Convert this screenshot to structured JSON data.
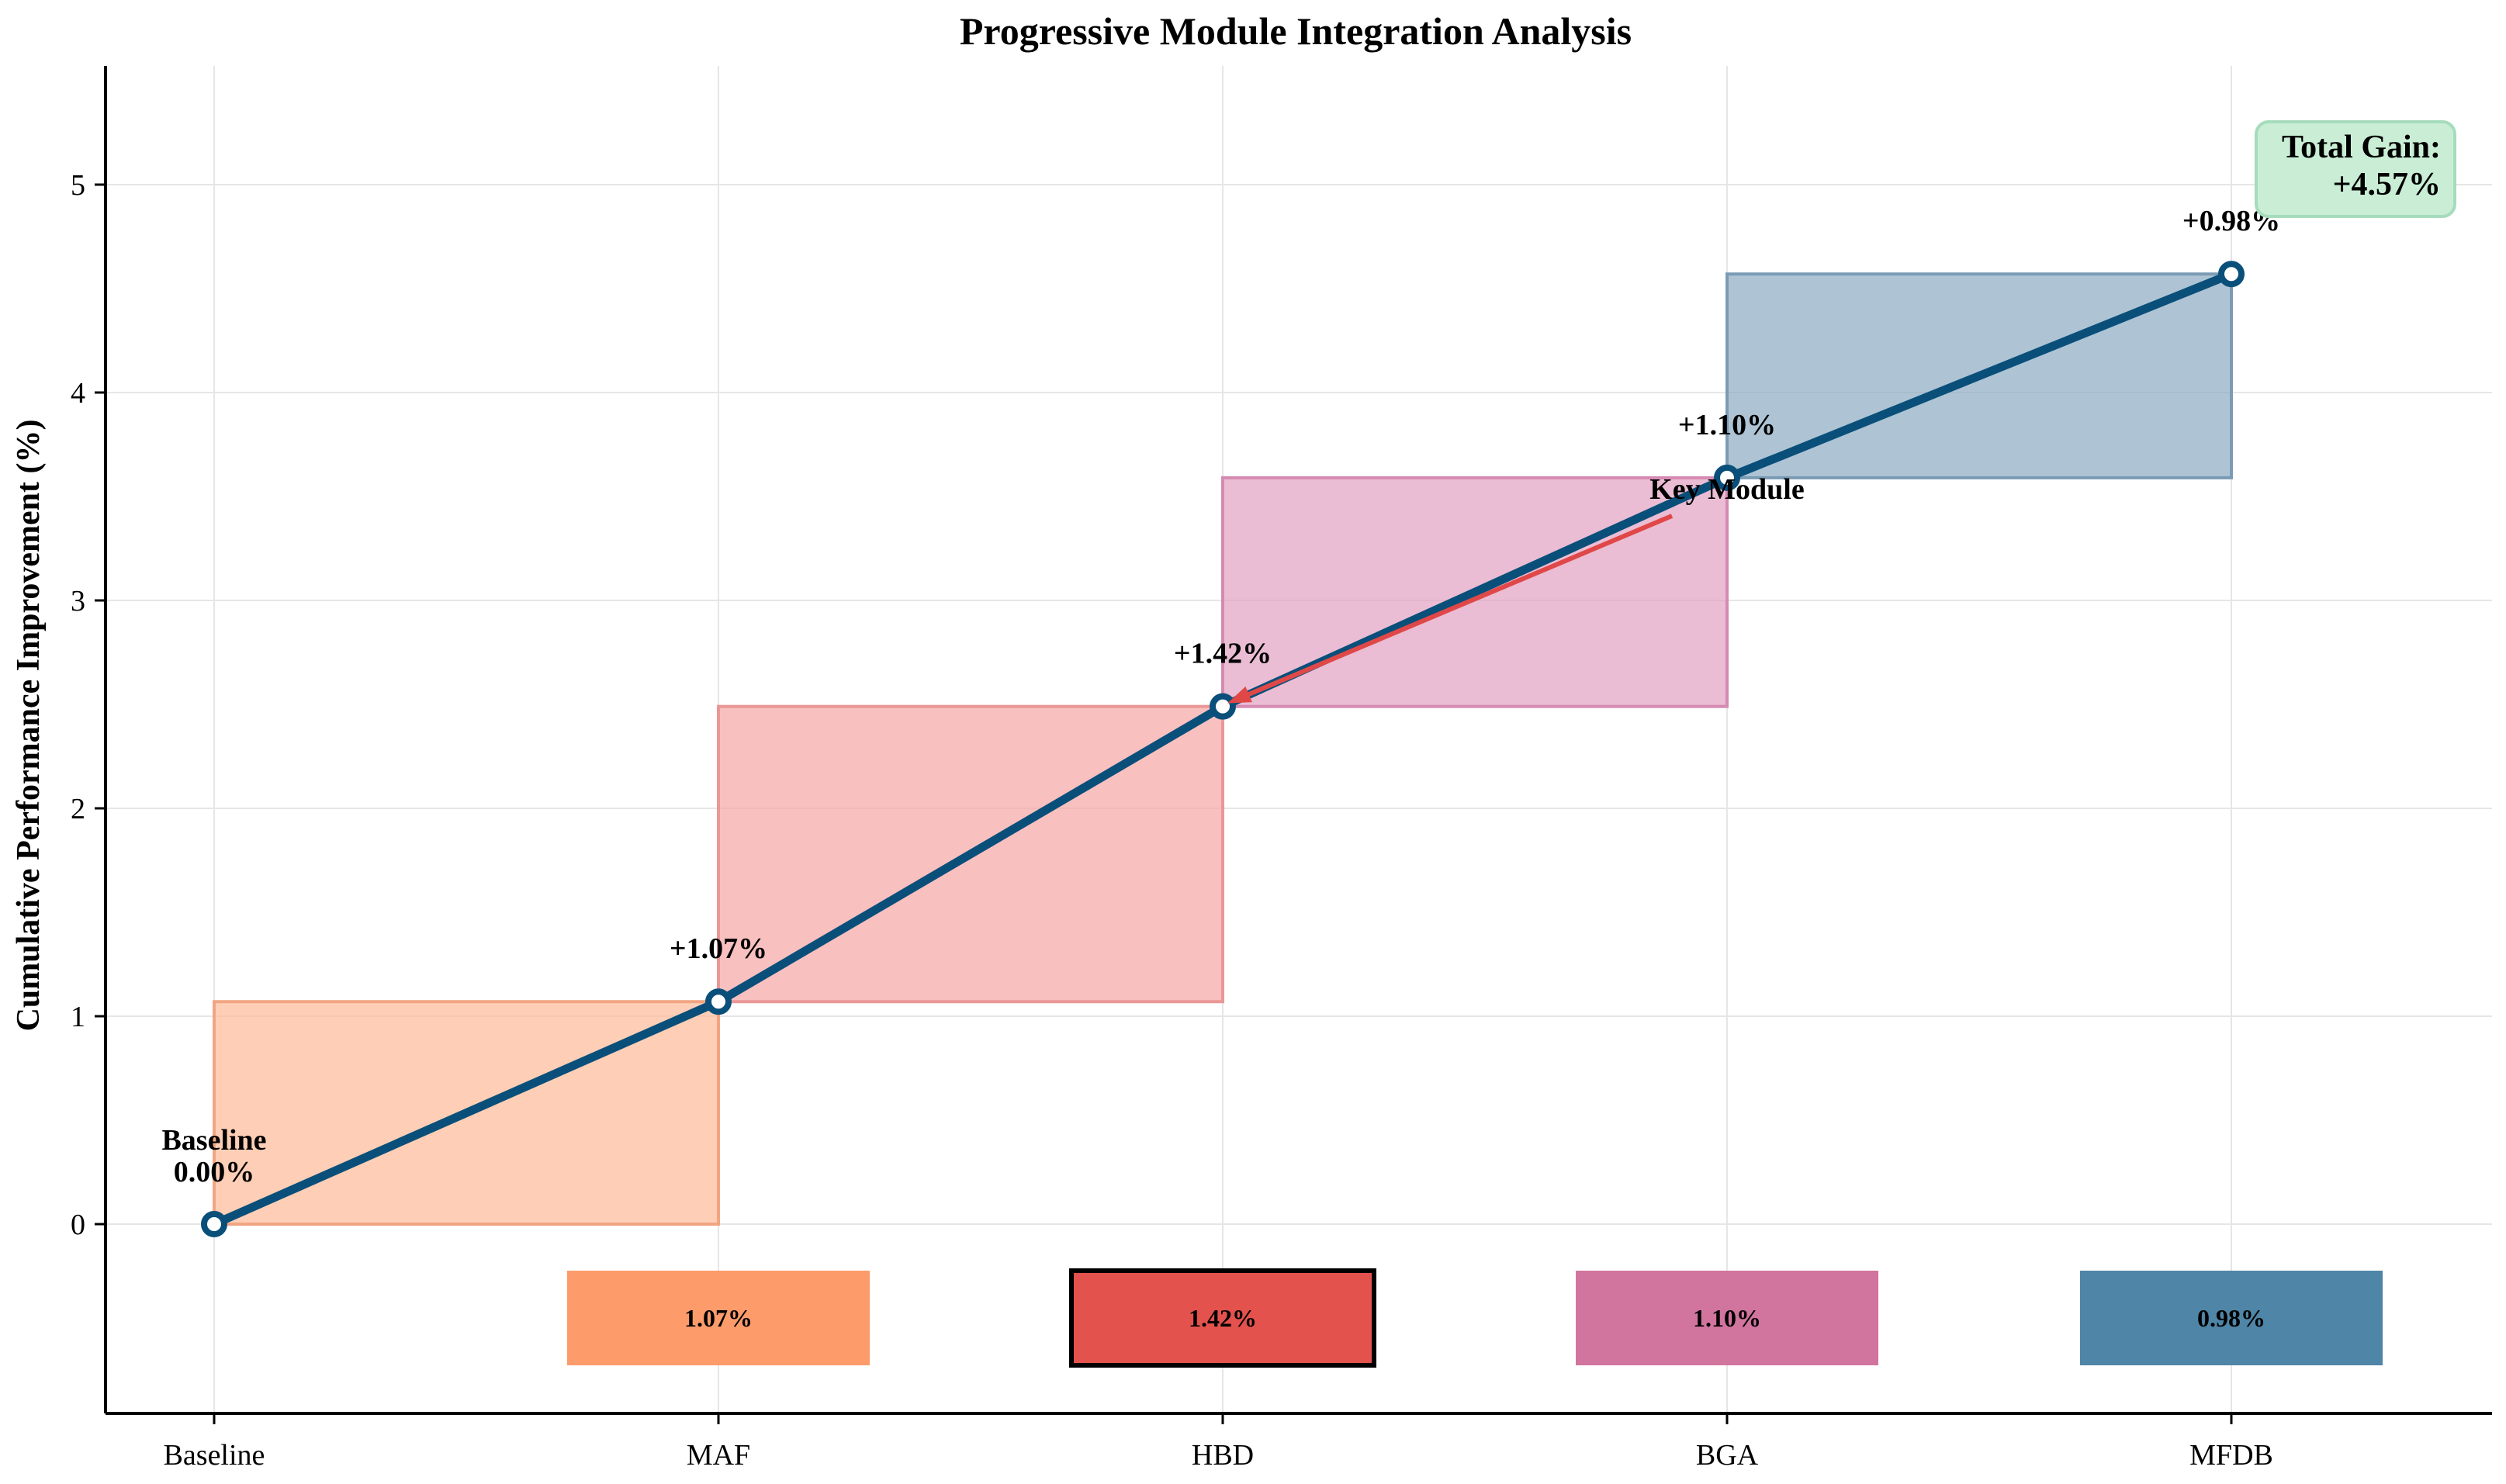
{
  "chart_data": {
    "type": "line",
    "title": "Progressive Module Integration Analysis",
    "xlabel": "",
    "ylabel": "Cumulative Performance Improvement (%)",
    "categories": [
      "Baseline",
      "MAF",
      "HBD",
      "BGA",
      "MFDB"
    ],
    "cumulative": [
      0.0,
      1.07,
      2.49,
      3.59,
      4.57
    ],
    "increments": [
      1.07,
      1.42,
      1.1,
      0.98
    ],
    "point_labels": [
      "+1.07%",
      "+1.42%",
      "+1.10%",
      "+0.98%"
    ],
    "baseline_label": "Baseline",
    "baseline_value_label": "0.00%",
    "tile_labels": [
      "1.07%",
      "1.42%",
      "1.10%",
      "0.98%"
    ],
    "annotation": "Key Module",
    "total_gain_line1": "Total Gain:",
    "total_gain_line2": "+4.57%",
    "yticks": [
      0,
      1,
      2,
      3,
      4,
      5
    ],
    "ytick_labels": [
      "0",
      "1",
      "2",
      "3",
      "4",
      "5"
    ],
    "ylim": [
      -0.92,
      5.58
    ],
    "grid": true,
    "colors": {
      "line": "#0a4f7a",
      "segments": [
        "#fdbc9a",
        "#f7a8a8",
        "#e2a4c4",
        "#8fadc4"
      ],
      "segment_edges": [
        "#f2a582",
        "#ea9797",
        "#d68ab2",
        "#7b9bb5"
      ],
      "tiles": [
        "#fe9b6b",
        "#e3524d",
        "#d1749e",
        "#4f85a6"
      ],
      "arrow": "#e04848",
      "gain_box_fill": "#c9eed5",
      "gain_box_edge": "#a6dcbc"
    }
  }
}
